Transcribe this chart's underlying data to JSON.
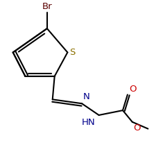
{
  "bg_color": "#ffffff",
  "line_color": "#000000",
  "bond_width": 1.5,
  "figsize": [
    2.35,
    2.22
  ],
  "dpi": 100,
  "atom_colors": {
    "Br": "#5a0000",
    "S": "#8B7000",
    "N": "#00008B",
    "O": "#cc0000",
    "C": "#000000"
  }
}
